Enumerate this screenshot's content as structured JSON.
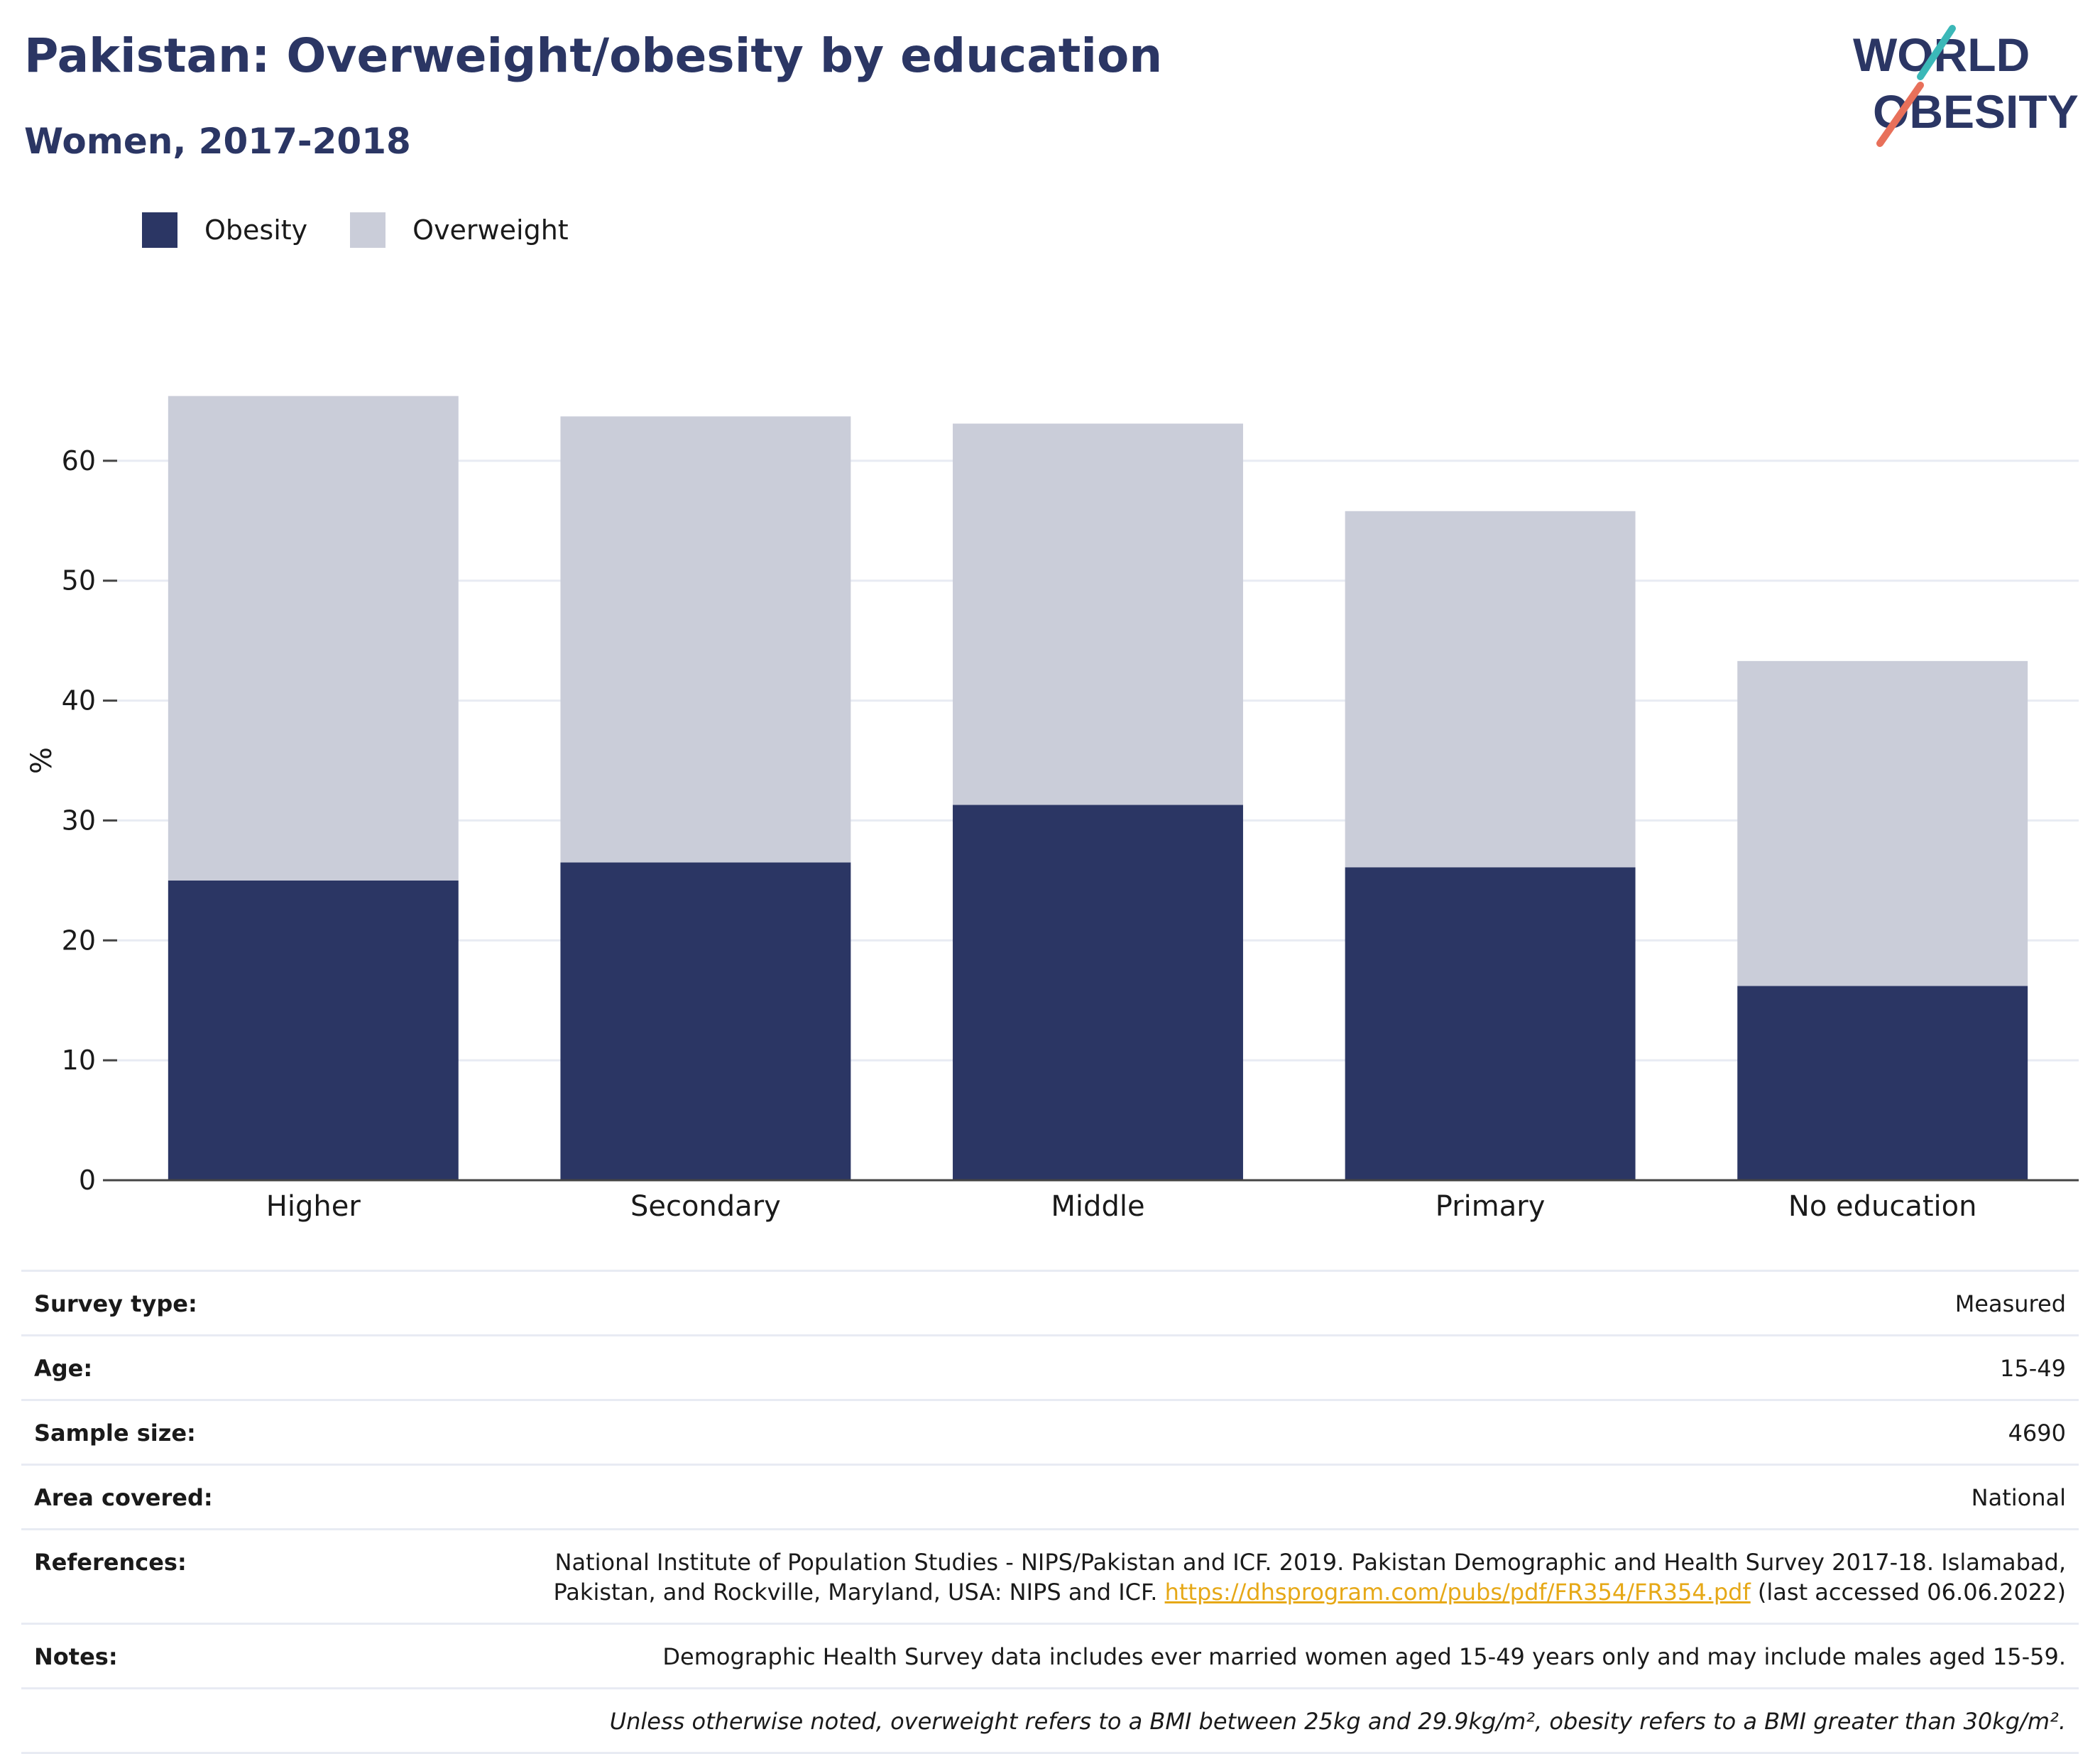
{
  "title": "Pakistan: Overweight/obesity by education",
  "subtitle": "Women, 2017-2018",
  "logo": {
    "line1": "WORLD",
    "line2": "OBESITY",
    "accent_colors": [
      "#3bb8b8",
      "#e8705a"
    ]
  },
  "legend": [
    {
      "label": "Obesity",
      "color": "#2b3664"
    },
    {
      "label": "Overweight",
      "color": "#cacdd9"
    }
  ],
  "chart_data": {
    "type": "bar",
    "stacked": true,
    "categories": [
      "Higher",
      "Secondary",
      "Middle",
      "Primary",
      "No education"
    ],
    "series": [
      {
        "name": "Obesity",
        "color": "#2b3664",
        "values": [
          25.0,
          26.5,
          31.3,
          26.1,
          16.2
        ]
      },
      {
        "name": "Overweight",
        "color": "#cacdd9",
        "values": [
          40.4,
          37.2,
          31.8,
          29.7,
          27.1
        ]
      }
    ],
    "ylabel": "%",
    "ylim": [
      0,
      70
    ],
    "yticks": [
      0,
      10,
      20,
      30,
      40,
      50,
      60
    ],
    "grid": true,
    "legend_position": "top-left"
  },
  "metadata": [
    {
      "label": "Survey type:",
      "value": "Measured"
    },
    {
      "label": "Age:",
      "value": "15-49"
    },
    {
      "label": "Sample size:",
      "value": "4690"
    },
    {
      "label": "Area covered:",
      "value": "National"
    },
    {
      "label": "References:",
      "value_line1": "National Institute of Population Studies - NIPS/Pakistan and ICF. 2019. Pakistan Demographic and Health Survey 2017-18. Islamabad,",
      "value_line2_pre": "Pakistan, and Rockville, Maryland, USA: NIPS and ICF. ",
      "value_link": "https://dhsprogram.com/pubs/pdf/FR354/FR354.pdf",
      "value_line2_post": " (last accessed 06.06.2022)"
    },
    {
      "label": "Notes:",
      "value": "Demographic Health Survey data includes ever married women aged 15-49 years only and may include males aged 15-59."
    }
  ],
  "footnote": "Unless otherwise noted, overweight refers to a BMI between 25kg and 29.9kg/m², obesity refers to a BMI greater than 30kg/m²."
}
